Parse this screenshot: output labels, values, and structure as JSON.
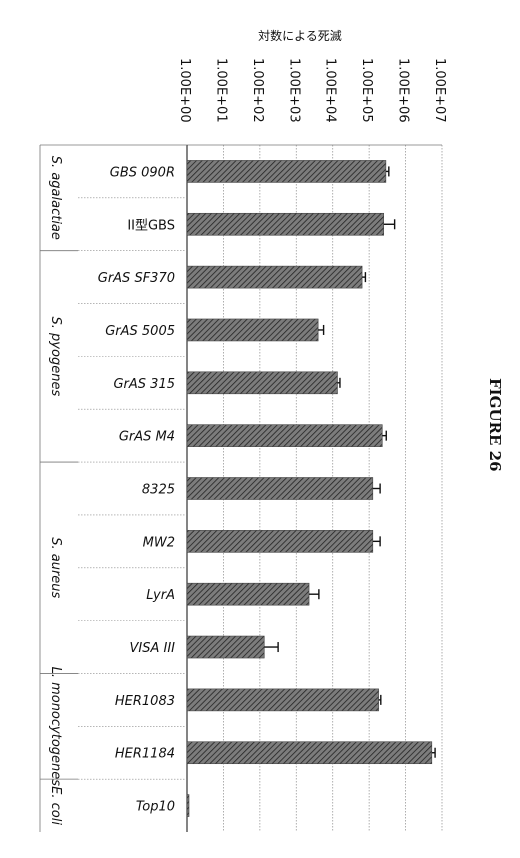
{
  "figure_label": "FIGURE 26",
  "chart_data": {
    "type": "bar",
    "orientation": "horizontal",
    "title": "対数による死滅",
    "xscale": "log",
    "xlim": [
      1,
      10000000
    ],
    "grid": true,
    "ticks": [
      {
        "value": 1,
        "label": "1.00E+00"
      },
      {
        "value": 10,
        "label": "1.00E+01"
      },
      {
        "value": 100,
        "label": "1.00E+02"
      },
      {
        "value": 1000,
        "label": "1.00E+03"
      },
      {
        "value": 10000,
        "label": "1.00E+04"
      },
      {
        "value": 100000,
        "label": "1.00E+05"
      },
      {
        "value": 1000000,
        "label": "1.00E+06"
      },
      {
        "value": 10000000,
        "label": "1.00E+07"
      }
    ],
    "categories": [
      "GBS 090R",
      "II型GBS",
      "GrAS SF370",
      "GrAS 5005",
      "GrAS 315",
      "GrAS M4",
      "8325",
      "MW2",
      "LyrA",
      "VISA III",
      "HER1083",
      "HER1184",
      "Top10"
    ],
    "values": [
      288000,
      251000,
      64000,
      3980,
      13500,
      229000,
      126000,
      126000,
      2240,
      132,
      182000,
      5250000,
      1
    ],
    "error_upper": [
      347000,
      501000,
      79000,
      5620,
      15800,
      295000,
      200000,
      200000,
      4170,
      317,
      209000,
      6460000,
      1
    ],
    "groups": [
      {
        "name": "S. agalactiae",
        "start": 0,
        "end": 1
      },
      {
        "name": "S. pyogenes",
        "start": 2,
        "end": 5
      },
      {
        "name": "S. aureus",
        "start": 6,
        "end": 9
      },
      {
        "name": "L. monocytogenes",
        "start": 10,
        "end": 11
      },
      {
        "name": "E. coli",
        "start": 12,
        "end": 12
      }
    ]
  }
}
